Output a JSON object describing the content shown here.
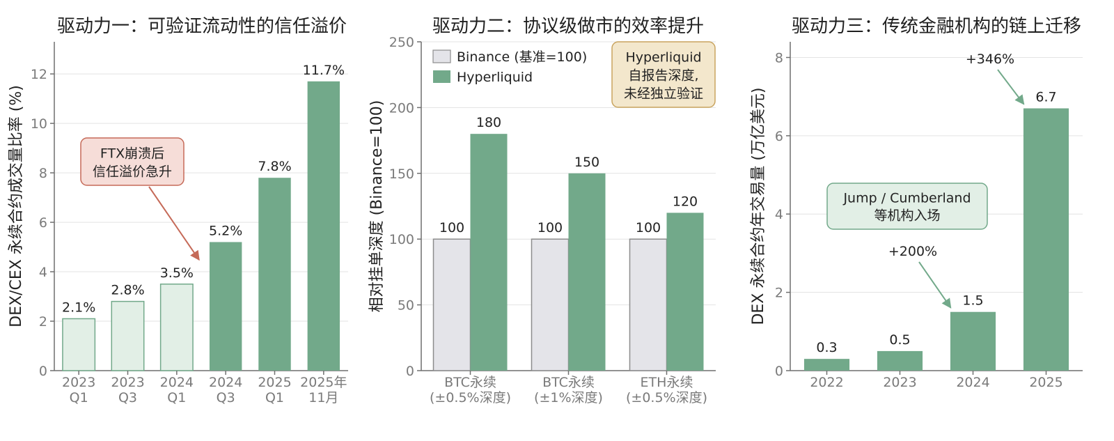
{
  "colors": {
    "green": "#72a98a",
    "light_green": "#e2efe6",
    "green_edge": "#72a98a",
    "gray_fill": "#e4e4e9",
    "gray_edge": "#8c8c8c",
    "annot_red_fill": "#f6ddd8",
    "annot_red_edge": "#c56a58",
    "annot_tan_fill": "#f3e7cc",
    "annot_tan_edge": "#c9a45f",
    "annot_green_fill": "#e2efe6",
    "arrow_red": "#c56a58",
    "arrow_green": "#72a98a",
    "grid": "#e3e3e3",
    "axis": "#6f6f6f"
  },
  "chart_data": [
    {
      "type": "bar",
      "title": "驱动力一：可验证流动性的信任溢价",
      "ylabel": "DEX/CEX 永续合约成交量比率 (%)",
      "xlabel": "",
      "ylim": [
        0,
        13.3
      ],
      "yticks": [
        0,
        2,
        4,
        6,
        8,
        10,
        12
      ],
      "grid": true,
      "categories": [
        [
          "2023",
          "Q1"
        ],
        [
          "2023",
          "Q3"
        ],
        [
          "2024",
          "Q1"
        ],
        [
          "2024",
          "Q3"
        ],
        [
          "2025",
          "Q1"
        ],
        [
          "2025年",
          "11月"
        ]
      ],
      "values": [
        2.1,
        2.8,
        3.5,
        5.2,
        7.8,
        11.7
      ],
      "value_labels": [
        "2.1%",
        "2.8%",
        "3.5%",
        "5.2%",
        "7.8%",
        "11.7%"
      ],
      "bar_styles": [
        "light",
        "light",
        "light",
        "dark",
        "dark",
        "dark"
      ],
      "annotation": {
        "lines": [
          "FTX崩溃后",
          "信任溢价急升"
        ],
        "style": "red"
      }
    },
    {
      "type": "bar",
      "title": "驱动力二：协议级做市的效率提升",
      "ylabel": "相对挂单深度 (Binance=100)",
      "xlabel": "",
      "ylim": [
        0,
        250
      ],
      "yticks": [
        0,
        50,
        100,
        150,
        200,
        250
      ],
      "grid": true,
      "legend_position": "top-left",
      "categories": [
        [
          "BTC永续",
          "(±0.5%深度)"
        ],
        [
          "BTC永续",
          "(±1%深度)"
        ],
        [
          "ETH永续",
          "(±0.5%深度)"
        ]
      ],
      "series": [
        {
          "name": "Binance (基准=100)",
          "values": [
            100,
            100,
            100
          ],
          "style": "gray"
        },
        {
          "name": "Hyperliquid",
          "values": [
            180,
            150,
            120
          ],
          "style": "green"
        }
      ],
      "annotation": {
        "lines": [
          "Hyperliquid",
          "自报告深度,",
          "未经独立验证"
        ],
        "style": "tan"
      }
    },
    {
      "type": "bar",
      "title": "驱动力三：传统金融机构的链上迁移",
      "ylabel": "DEX 永续合约年交易量 (万亿美元)",
      "xlabel": "",
      "ylim": [
        0,
        8.4
      ],
      "yticks": [
        0,
        2,
        4,
        6,
        8
      ],
      "grid": true,
      "categories": [
        "2022",
        "2023",
        "2024",
        "2025"
      ],
      "values": [
        0.3,
        0.5,
        1.5,
        6.7
      ],
      "value_labels": [
        "0.3",
        "0.5",
        "1.5",
        "6.7"
      ],
      "growth_labels": [
        "+200%",
        "+346%"
      ],
      "annotation": {
        "lines": [
          "Jump / Cumberland",
          "等机构入场"
        ],
        "style": "green"
      }
    }
  ]
}
